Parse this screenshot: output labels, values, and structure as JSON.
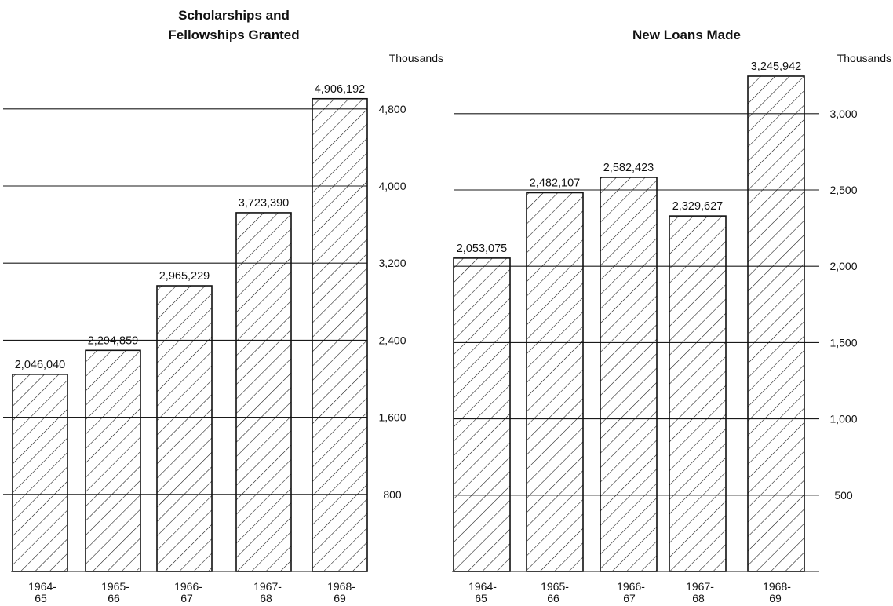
{
  "chart_data": [
    {
      "type": "bar",
      "title_lines": [
        "Scholarships and",
        "Fellowships Granted"
      ],
      "unit_label": "Thousands",
      "categories": [
        [
          "1964-",
          "65"
        ],
        [
          "1965-",
          "66"
        ],
        [
          "1966-",
          "67"
        ],
        [
          "1967-",
          "68"
        ],
        [
          "1968-",
          "69"
        ]
      ],
      "values": [
        2046040,
        2294859,
        2965229,
        3723390,
        4906192
      ],
      "value_labels": [
        "2,046,040",
        "2,294,859",
        "2,965,229",
        "3,723,390",
        "4,906,192"
      ],
      "yticks": [
        800,
        1600,
        2400,
        3200,
        4000,
        4800
      ],
      "ytick_labels": [
        "800",
        "1,600",
        "2,400",
        "3,200",
        "4,000",
        "4,800"
      ],
      "ylim": [
        0,
        5000
      ],
      "value_scale": 1000,
      "grid": true,
      "pattern": "diagonal-hatch",
      "color": "#111111"
    },
    {
      "type": "bar",
      "title_lines": [
        "New Loans Made"
      ],
      "unit_label": "Thousands",
      "categories": [
        [
          "1964-",
          "65"
        ],
        [
          "1965-",
          "66"
        ],
        [
          "1966-",
          "67"
        ],
        [
          "1967-",
          "68"
        ],
        [
          "1968-",
          "69"
        ]
      ],
      "values": [
        2053075,
        2482107,
        2582423,
        2329627,
        3245942
      ],
      "value_labels": [
        "2,053,075",
        "2,482,107",
        "2,582,423",
        "2,329,627",
        "3,245,942"
      ],
      "yticks": [
        500,
        1000,
        1500,
        2000,
        2500,
        3000
      ],
      "ytick_labels": [
        "500",
        "1,000",
        "1,500",
        "2,000",
        "2,500",
        "3,000"
      ],
      "ylim": [
        0,
        3300
      ],
      "value_scale": 1000,
      "grid": true,
      "pattern": "diagonal-hatch",
      "color": "#111111"
    }
  ]
}
